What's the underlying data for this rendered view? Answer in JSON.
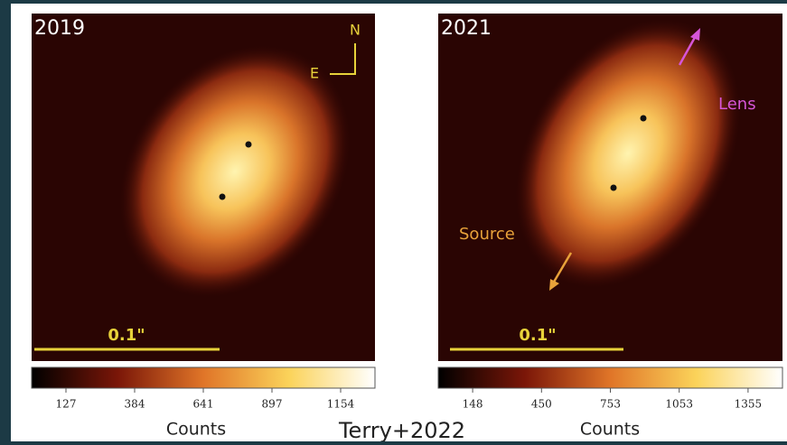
{
  "panels": [
    {
      "year": "2019",
      "compass": {
        "north": "N",
        "east": "E"
      },
      "scale_bar": "0.1\"",
      "colorbar": {
        "ticks": [
          127,
          384,
          641,
          897,
          1154
        ],
        "label": "Counts"
      }
    },
    {
      "year": "2021",
      "annotations": {
        "lens": "Lens",
        "source": "Source"
      },
      "scale_bar": "0.1\"",
      "colorbar": {
        "ticks": [
          148,
          450,
          753,
          1053,
          1355
        ],
        "label": "Counts"
      }
    }
  ],
  "credit": "Terry+2022"
}
